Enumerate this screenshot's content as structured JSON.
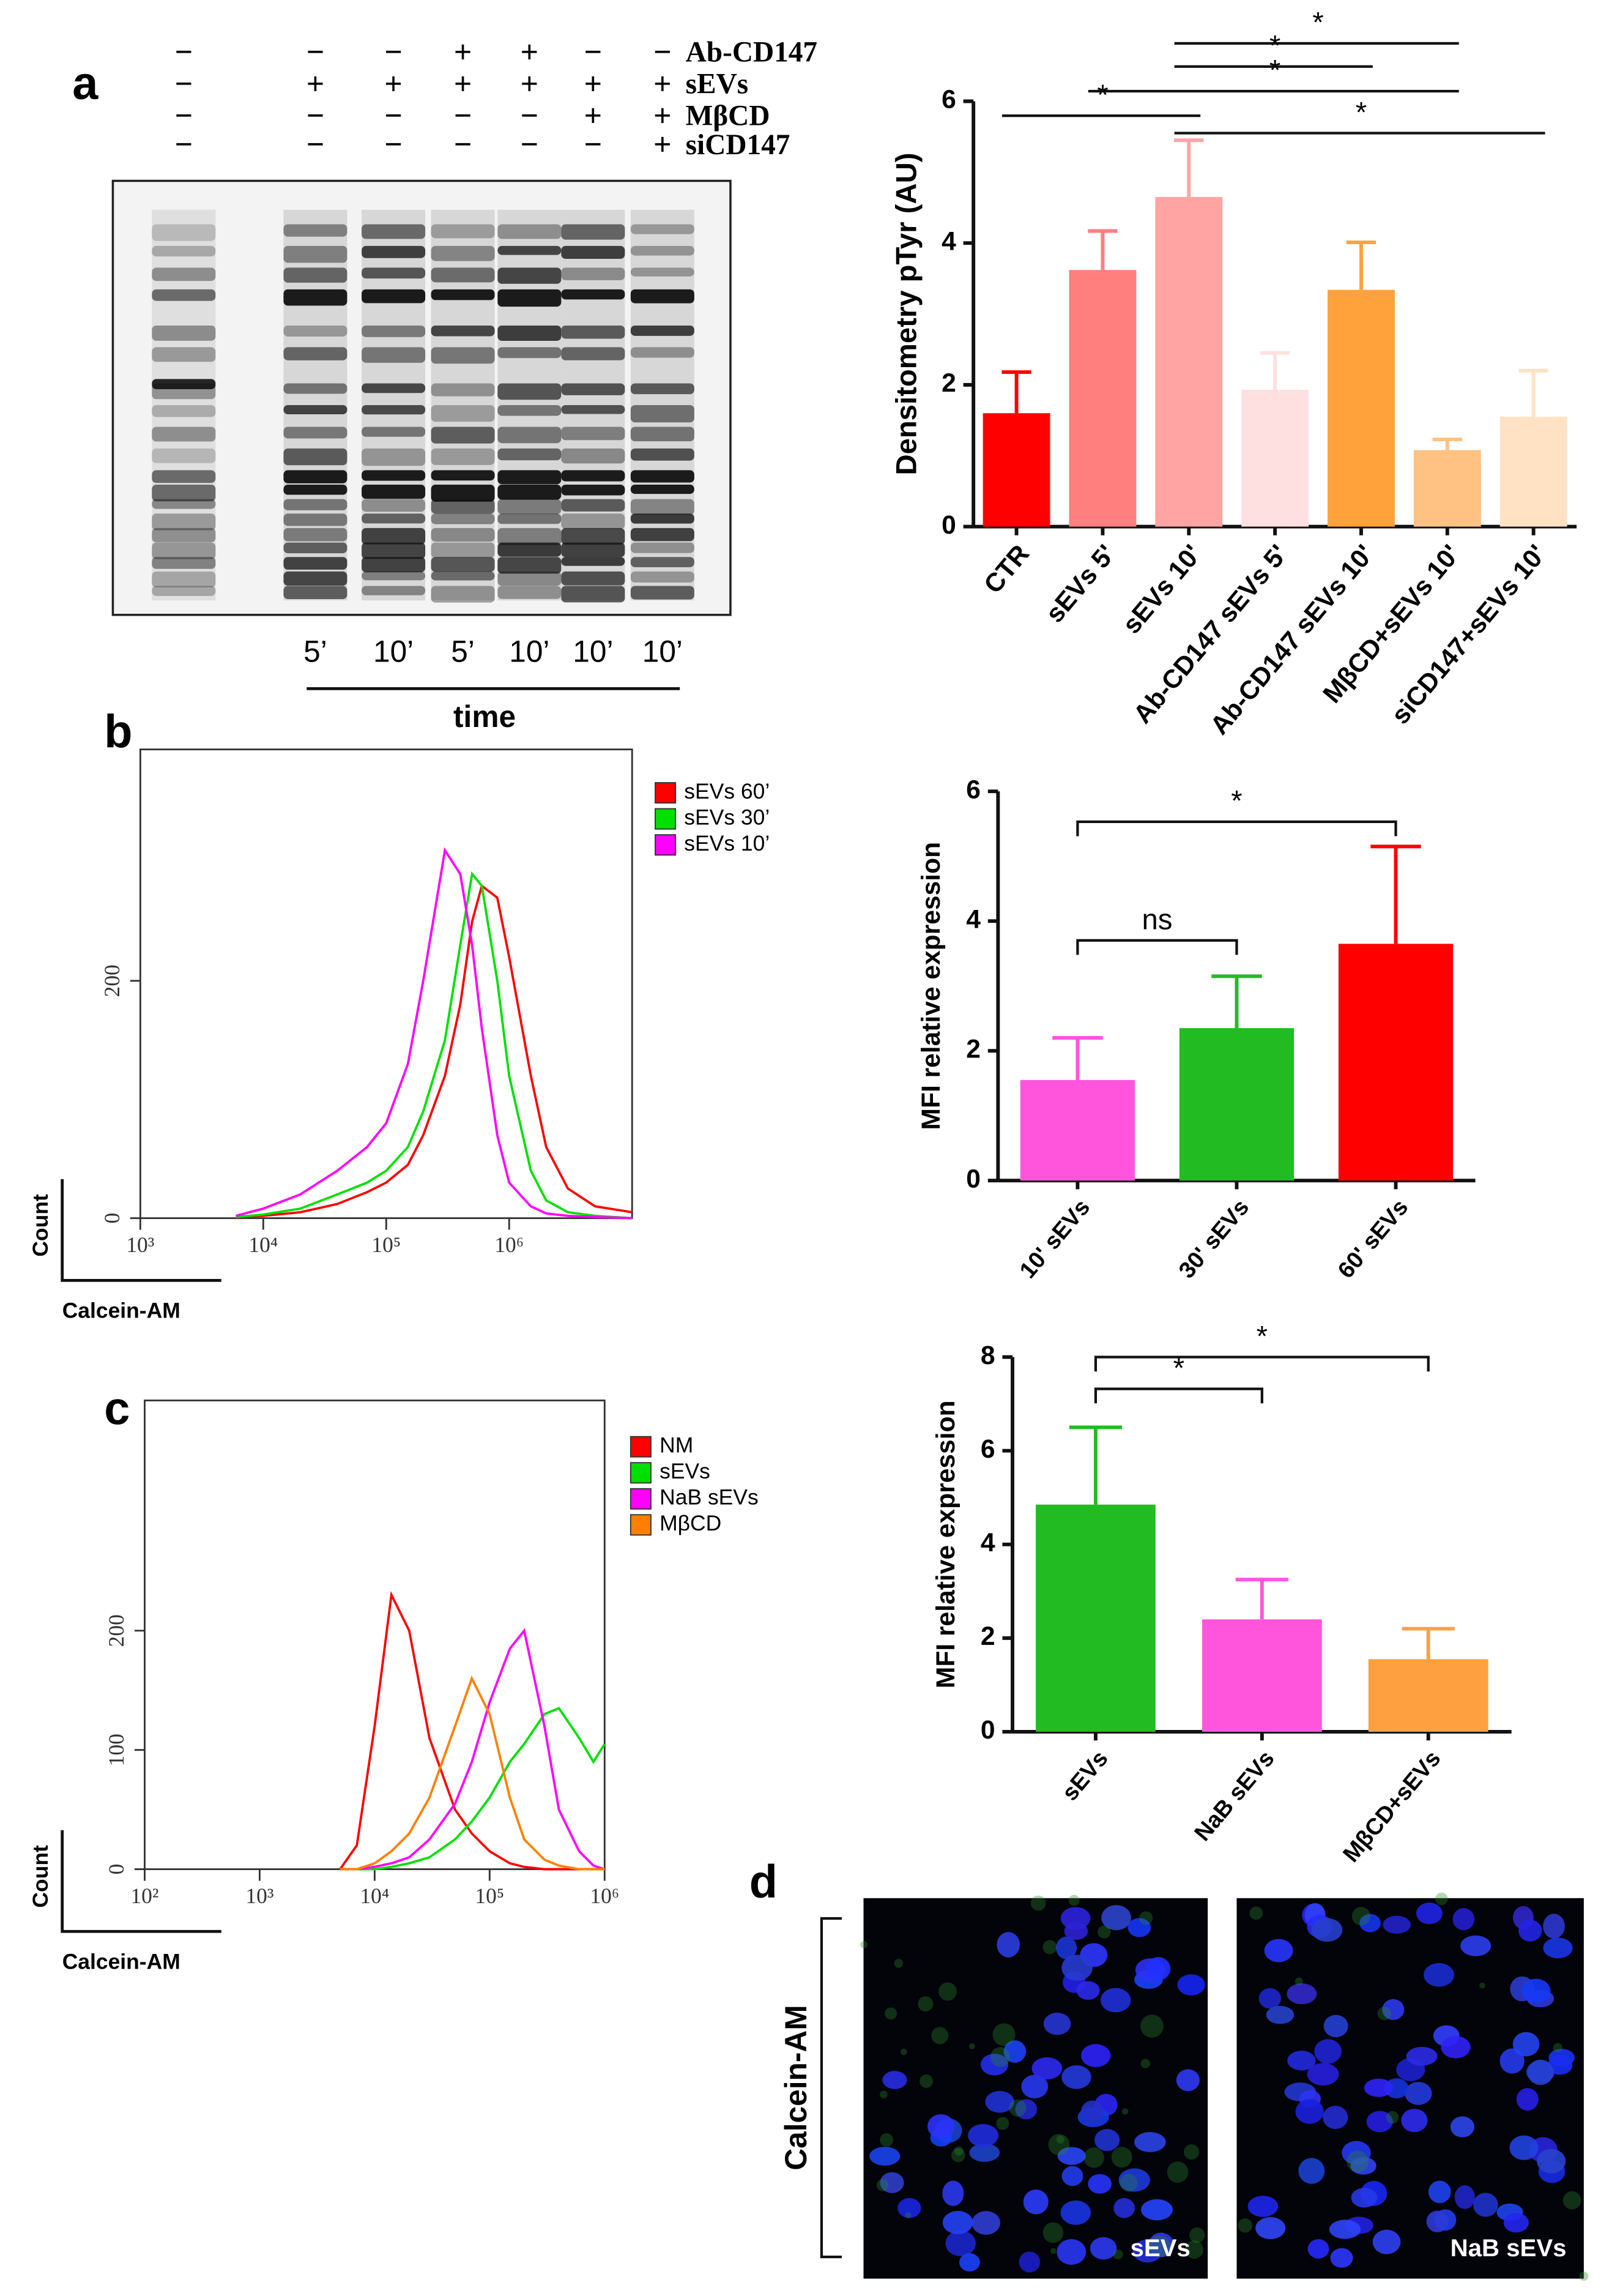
{
  "panel_labels": [
    "a",
    "b",
    "c",
    "d"
  ],
  "blot": {
    "rows": [
      {
        "label": "Ab-CD147",
        "signs": [
          "−",
          "−",
          "−",
          "+",
          "+",
          "−",
          "−"
        ]
      },
      {
        "label": "sEVs",
        "signs": [
          "−",
          "+",
          "+",
          "+",
          "+",
          "+",
          "+"
        ]
      },
      {
        "label": "MβCD",
        "signs": [
          "−",
          "−",
          "−",
          "−",
          "−",
          "+",
          "+"
        ]
      },
      {
        "label": "siCD147",
        "signs": [
          "−",
          "−",
          "−",
          "−",
          "−",
          "−",
          "+"
        ]
      }
    ],
    "lanes": [
      "5’",
      "10’",
      "5’",
      "10’",
      "10’",
      "10’"
    ],
    "axis_label": "time"
  },
  "images": {
    "label": "Calcein-AM",
    "panels": [
      "sEVs",
      "NaB sEVs"
    ]
  },
  "chart_data": [
    {
      "type": "bar",
      "ylabel": "Densitometry pTyr (AU)",
      "categories": [
        "CTR",
        "sEVs 5'",
        "sEVs 10'",
        "Ab-CD147 sEVs 5'",
        "Ab-CD147 sEVs 10'",
        "MβCD+sEVs 10'",
        "siCD147+sEVs 10'"
      ],
      "values": [
        1.6,
        3.62,
        4.65,
        1.93,
        3.34,
        1.08,
        1.55
      ],
      "errors": [
        0.58,
        0.55,
        0.8,
        0.52,
        0.67,
        0.15,
        0.65
      ],
      "colors": [
        "#ff0000",
        "#ff7f7f",
        "#ffa3a3",
        "#ffe0e0",
        "#ffa23c",
        "#ffc283",
        "#ffe2c4"
      ],
      "ylim": [
        0,
        6
      ],
      "yticks": [
        0,
        2,
        4,
        6
      ],
      "comparisons": [
        {
          "from": 0,
          "to": 2,
          "label": "*"
        },
        {
          "from": 2,
          "to": 6,
          "label": "*"
        },
        {
          "from": 1,
          "to": 5,
          "label": "*"
        },
        {
          "from": 2,
          "to": 4,
          "label": "*"
        },
        {
          "from": 2,
          "to": 5,
          "label": "*"
        }
      ]
    },
    {
      "type": "line",
      "xscale": "log",
      "ylabel": "Count",
      "xlabel": "Calcein-AM",
      "x": [
        6000,
        10000,
        20000,
        40000,
        70000,
        100000,
        150000,
        200000,
        300000,
        400000,
        500000,
        600000,
        800000,
        1000000,
        1500000,
        2000000,
        3000000,
        5000000,
        10000000
      ],
      "series": [
        {
          "name": "sEVs 60’",
          "color": "#ff0000",
          "values": [
            1,
            2,
            5,
            12,
            22,
            30,
            45,
            70,
            120,
            180,
            250,
            280,
            270,
            220,
            120,
            60,
            25,
            10,
            5
          ]
        },
        {
          "name": "sEVs 30’",
          "color": "#00e000",
          "values": [
            1,
            3,
            8,
            20,
            30,
            40,
            60,
            90,
            150,
            230,
            290,
            280,
            200,
            120,
            40,
            15,
            5,
            2,
            0
          ]
        },
        {
          "name": "sEVs 10’",
          "color": "#ff00ff",
          "values": [
            2,
            8,
            20,
            40,
            60,
            80,
            130,
            200,
            310,
            290,
            230,
            160,
            70,
            30,
            10,
            4,
            2,
            1,
            0
          ]
        }
      ],
      "xlim": [
        1000,
        10000000
      ],
      "xticks": [
        {
          "value": 1000,
          "label": "10³"
        },
        {
          "value": 10000,
          "label": "10⁴"
        },
        {
          "value": 100000,
          "label": "10⁵"
        },
        {
          "value": 1000000,
          "label": "10⁶"
        }
      ],
      "ylim": [
        0,
        395
      ],
      "yticks": [
        0,
        200
      ]
    },
    {
      "type": "bar",
      "ylabel": "MFI relative expression",
      "categories": [
        "10' sEVs",
        "30' sEVs",
        "60' sEVs"
      ],
      "values": [
        1.55,
        2.35,
        3.65
      ],
      "errors": [
        0.65,
        0.8,
        1.5
      ],
      "colors": [
        "#ff55dd",
        "#22bb22",
        "#ff0000"
      ],
      "ylim": [
        0,
        6
      ],
      "yticks": [
        0,
        2,
        4,
        6
      ],
      "comparisons": [
        {
          "from": 0,
          "to": 1,
          "label": "ns"
        },
        {
          "from": 0,
          "to": 2,
          "label": "*"
        }
      ]
    },
    {
      "type": "line",
      "xscale": "log",
      "ylabel": "Count",
      "xlabel": "Calcein-AM",
      "x": [
        5000,
        7000,
        10000,
        14000,
        20000,
        30000,
        50000,
        70000,
        100000,
        150000,
        200000,
        300000,
        400000,
        600000,
        800000,
        1000000
      ],
      "series": [
        {
          "name": "NM",
          "color": "#ff0000",
          "values": [
            0,
            20,
            120,
            230,
            200,
            110,
            50,
            30,
            15,
            5,
            2,
            0,
            0,
            0,
            0,
            0
          ]
        },
        {
          "name": "sEVs",
          "color": "#00e000",
          "values": [
            0,
            0,
            0,
            2,
            5,
            10,
            25,
            40,
            60,
            90,
            105,
            130,
            135,
            110,
            90,
            105
          ]
        },
        {
          "name": "NaB sEVs",
          "color": "#ff00ff",
          "values": [
            0,
            0,
            2,
            5,
            10,
            25,
            55,
            90,
            140,
            185,
            200,
            120,
            50,
            15,
            3,
            0
          ]
        },
        {
          "name": "MβCD",
          "color": "#ff8000",
          "values": [
            0,
            0,
            5,
            15,
            30,
            60,
            120,
            160,
            130,
            60,
            25,
            8,
            3,
            0,
            0,
            0
          ]
        }
      ],
      "xlim": [
        100,
        1000000
      ],
      "xticks": [
        {
          "value": 100,
          "label": "10²"
        },
        {
          "value": 1000,
          "label": "10³"
        },
        {
          "value": 10000,
          "label": "10⁴"
        },
        {
          "value": 100000,
          "label": "10⁵"
        },
        {
          "value": 1000000,
          "label": "10⁶"
        }
      ],
      "ylim": [
        0,
        393
      ],
      "yticks": [
        0,
        100,
        200
      ]
    },
    {
      "type": "bar",
      "ylabel": "MFI relative expression",
      "categories": [
        "sEVs",
        "NaB sEVs",
        "MβCD+sEVs"
      ],
      "values": [
        4.85,
        2.4,
        1.55
      ],
      "errors": [
        1.65,
        0.85,
        0.65
      ],
      "colors": [
        "#22bb22",
        "#ff55dd",
        "#ffa040"
      ],
      "ylim": [
        0,
        8
      ],
      "yticks": [
        0,
        2,
        4,
        6,
        8
      ],
      "comparisons": [
        {
          "from": 0,
          "to": 1,
          "label": "*"
        },
        {
          "from": 0,
          "to": 2,
          "label": "*"
        }
      ]
    }
  ]
}
